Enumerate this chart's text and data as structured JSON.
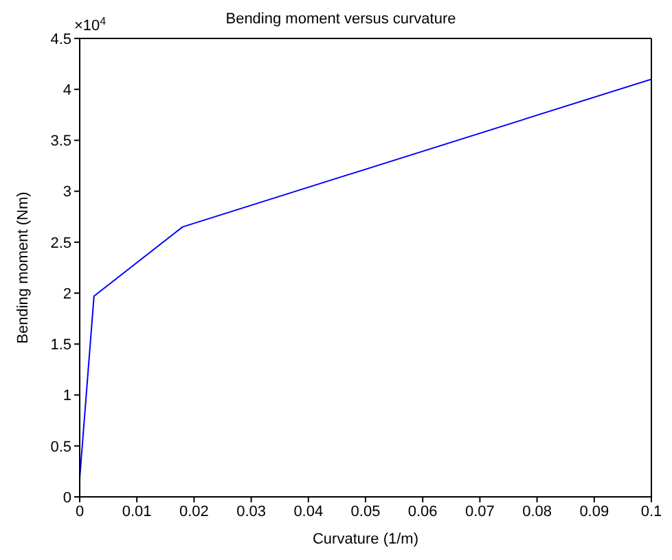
{
  "chart_data": {
    "type": "line",
    "title": "Bending moment versus curvature",
    "xlabel": "Curvature (1/m)",
    "ylabel": "Bending moment (Nm)",
    "annotations": [
      "×10$^{4}$"
    ],
    "x": [
      0,
      0.0025,
      0.018,
      0.1
    ],
    "series": [
      {
        "color": "#0000ff",
        "values": [
          0.18,
          1.97,
          2.65,
          4.1
        ]
      }
    ],
    "xlim": [
      0,
      0.1
    ],
    "xticks": [
      0,
      0.01,
      0.02,
      0.03,
      0.04,
      0.05,
      0.06,
      0.07,
      0.08,
      0.09,
      0.1
    ],
    "ylim": [
      0,
      4.5
    ],
    "yticks": [
      0,
      0.5,
      1,
      1.5,
      2,
      2.5,
      3,
      3.5,
      4,
      4.5
    ],
    "grid": false,
    "legend": false,
    "marker": "none",
    "line_style": "solid"
  }
}
